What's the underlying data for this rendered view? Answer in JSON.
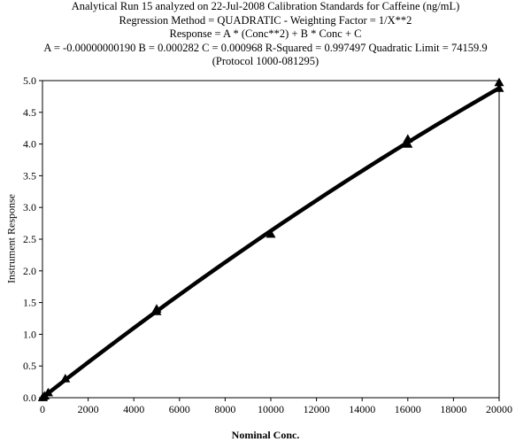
{
  "chart_data": {
    "type": "scatter",
    "title_lines": [
      "Analytical Run 15 analyzed on 22-Jul-2008 Calibration Standards for Caffeine (ng/mL)",
      "Regression Method = QUADRATIC - Weighting Factor = 1/X**2",
      "Response = A * (Conc**2) + B * Conc + C",
      "A = -0.00000000190 B = 0.000282 C = 0.000968 R-Squared = 0.997497  Quadratic Limit = 74159.9",
      "(Protocol 1000-081295)"
    ],
    "xlabel": "Nominal Conc.",
    "ylabel": "Instrument Response",
    "xlim": [
      0,
      20000
    ],
    "ylim": [
      0,
      5.0
    ],
    "x_ticks": [
      "0",
      "2000",
      "4000",
      "6000",
      "8000",
      "10000",
      "12000",
      "14000",
      "16000",
      "18000",
      "20000"
    ],
    "y_ticks": [
      "0.0",
      "0.5",
      "1.0",
      "1.5",
      "2.0",
      "2.5",
      "3.0",
      "3.5",
      "4.0",
      "4.5",
      "5.0"
    ],
    "grid": false,
    "coefficients": {
      "A": -1.9e-09,
      "B": 0.000282,
      "C": 0.000968
    },
    "points": [
      {
        "x": 10,
        "y": 0.004
      },
      {
        "x": 25,
        "y": 0.01
      },
      {
        "x": 100,
        "y": 0.03
      },
      {
        "x": 250,
        "y": 0.08
      },
      {
        "x": 1000,
        "y": 0.3
      },
      {
        "x": 5000,
        "y": 1.36
      },
      {
        "x": 5000,
        "y": 1.4
      },
      {
        "x": 10000,
        "y": 2.58
      },
      {
        "x": 16000,
        "y": 4.0
      },
      {
        "x": 16000,
        "y": 4.08
      },
      {
        "x": 20000,
        "y": 4.88
      },
      {
        "x": 20000,
        "y": 4.97
      }
    ],
    "colors": {
      "marker": "#000000",
      "line": "#000000",
      "axis": "#000000"
    }
  }
}
